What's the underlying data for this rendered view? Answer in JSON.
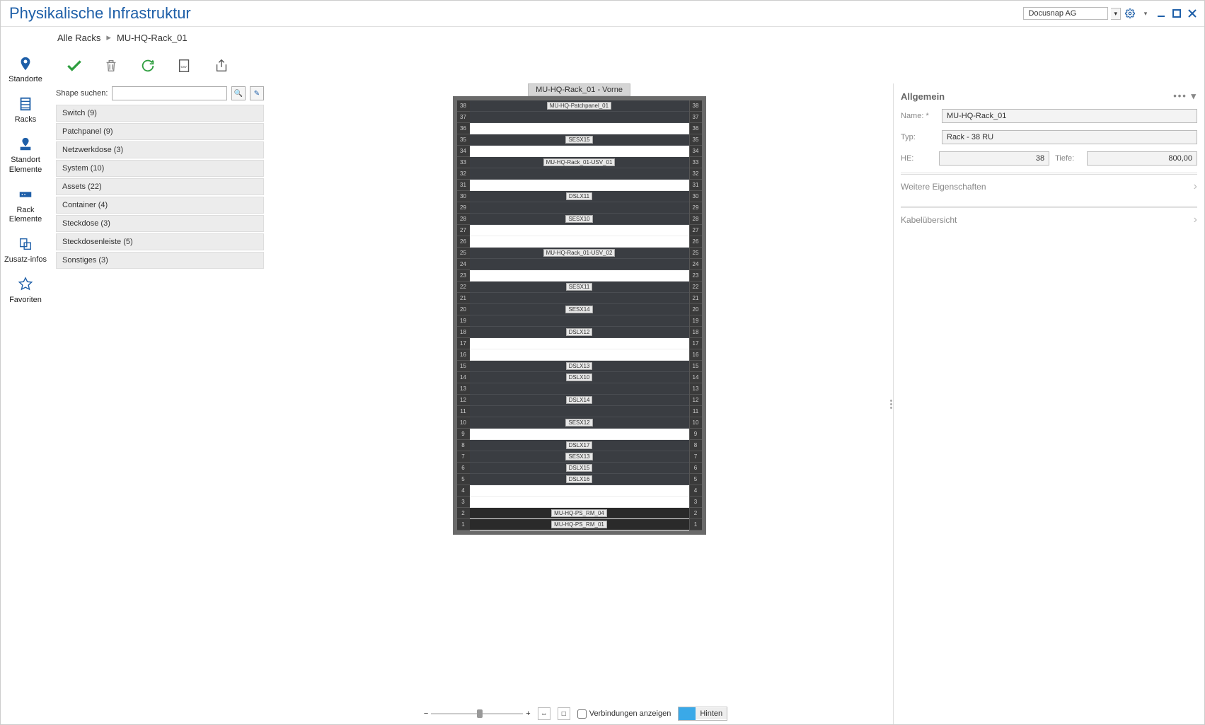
{
  "title": "Physikalische Infrastruktur",
  "tenant": "Docusnap AG",
  "breadcrumb": {
    "root": "Alle Racks",
    "current": "MU-HQ-Rack_01"
  },
  "leftnav": [
    {
      "label": "Standorte"
    },
    {
      "label": "Racks"
    },
    {
      "label": "Standort Elemente"
    },
    {
      "label": "Rack Elemente"
    },
    {
      "label": "Zusatz-infos"
    },
    {
      "label": "Favoriten"
    }
  ],
  "search_label": "Shape suchen:",
  "shape_categories": [
    "Switch (9)",
    "Patchpanel (9)",
    "Netzwerkdose (3)",
    "System (10)",
    "Assets (22)",
    "Container (4)",
    "Steckdose (3)",
    "Steckdosenleiste (5)",
    "Sonstiges (3)"
  ],
  "rack": {
    "title": "MU-HQ-Rack_01 - Vorne",
    "total_ru": 38,
    "rows": [
      {
        "u": 38,
        "type": "dark",
        "label": "MU-HQ-Patchpanel_01"
      },
      {
        "u": 37,
        "type": "dark"
      },
      {
        "u": 36,
        "type": "empty"
      },
      {
        "u": 35,
        "type": "dark",
        "label": "SESX15"
      },
      {
        "u": 34,
        "type": "empty"
      },
      {
        "u": 33,
        "type": "dark",
        "label": "MU-HQ-Rack_01-USV_01"
      },
      {
        "u": 32,
        "type": "dark"
      },
      {
        "u": 31,
        "type": "empty"
      },
      {
        "u": 30,
        "type": "dark",
        "label": "DSLX11"
      },
      {
        "u": 29,
        "type": "dark"
      },
      {
        "u": 28,
        "type": "dark",
        "label": "SESX10"
      },
      {
        "u": 27,
        "type": "empty"
      },
      {
        "u": 26,
        "type": "empty"
      },
      {
        "u": 25,
        "type": "dark",
        "label": "MU-HQ-Rack_01-USV_02"
      },
      {
        "u": 24,
        "type": "dark"
      },
      {
        "u": 23,
        "type": "empty"
      },
      {
        "u": 22,
        "type": "dark",
        "label": "SESX11"
      },
      {
        "u": 21,
        "type": "dark"
      },
      {
        "u": 20,
        "type": "dark",
        "label": "SESX14"
      },
      {
        "u": 19,
        "type": "dark"
      },
      {
        "u": 18,
        "type": "dark",
        "label": "DSLX12"
      },
      {
        "u": 17,
        "type": "empty"
      },
      {
        "u": 16,
        "type": "empty"
      },
      {
        "u": 15,
        "type": "dark",
        "label": "DSLX13"
      },
      {
        "u": 14,
        "type": "dark",
        "label": "DSLX10"
      },
      {
        "u": 13,
        "type": "dark"
      },
      {
        "u": 12,
        "type": "dark",
        "label": "DSLX14"
      },
      {
        "u": 11,
        "type": "dark"
      },
      {
        "u": 10,
        "type": "dark",
        "label": "SESX12"
      },
      {
        "u": 9,
        "type": "empty"
      },
      {
        "u": 8,
        "type": "dark",
        "label": "DSLX17"
      },
      {
        "u": 7,
        "type": "dark",
        "label": "SESX13"
      },
      {
        "u": 6,
        "type": "dark",
        "label": "DSLX15"
      },
      {
        "u": 5,
        "type": "dark",
        "label": "DSLX16"
      },
      {
        "u": 4,
        "type": "empty"
      },
      {
        "u": 3,
        "type": "empty"
      },
      {
        "u": 2,
        "type": "pdu",
        "label": "MU-HQ-PS_RM_04"
      },
      {
        "u": 1,
        "type": "pdu",
        "label": "MU-HQ-PS_RM_01"
      }
    ]
  },
  "bottom": {
    "show_connections": "Verbindungen anzeigen",
    "hinten": "Hinten"
  },
  "props": {
    "section": "Allgemein",
    "name_lbl": "Name: *",
    "name_val": "MU-HQ-Rack_01",
    "typ_lbl": "Typ:",
    "typ_val": "Rack - 38 RU",
    "he_lbl": "HE:",
    "he_val": "38",
    "tiefe_lbl": "Tiefe:",
    "tiefe_val": "800,00",
    "more": "Weitere Eigenschaften",
    "cables": "Kabelübersicht"
  },
  "colors": {
    "accent": "#1e5fa8",
    "rack_bg": "#6a6a6a",
    "dark_slot": "#3a3d42",
    "pdu_slot": "#2a2a2a"
  }
}
